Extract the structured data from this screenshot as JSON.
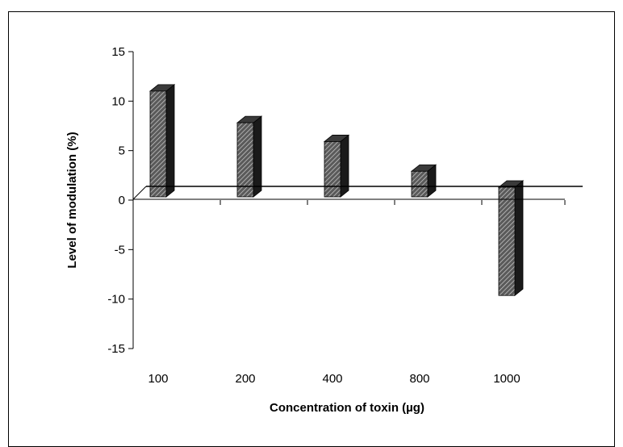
{
  "chart_data": {
    "type": "bar",
    "categories": [
      "100",
      "200",
      "400",
      "800",
      "1000"
    ],
    "values": [
      10.2,
      7.0,
      5.1,
      2.1,
      -9.8
    ],
    "xlabel": "Concentration of toxin (µg)",
    "ylabel": "Level of modulation (%)",
    "ylim": [
      -15,
      15
    ],
    "yticks": [
      15,
      10,
      5,
      0,
      -5,
      -10,
      -15
    ],
    "grid": false,
    "legend": "none",
    "bar_style": "3d-hatched",
    "colors": {
      "bar_front": "#6a6a6a",
      "bar_side": "#1a1a1a",
      "bar_top": "#3a3a3a",
      "hatch": "#d8d8d8",
      "axis": "#000000"
    }
  }
}
